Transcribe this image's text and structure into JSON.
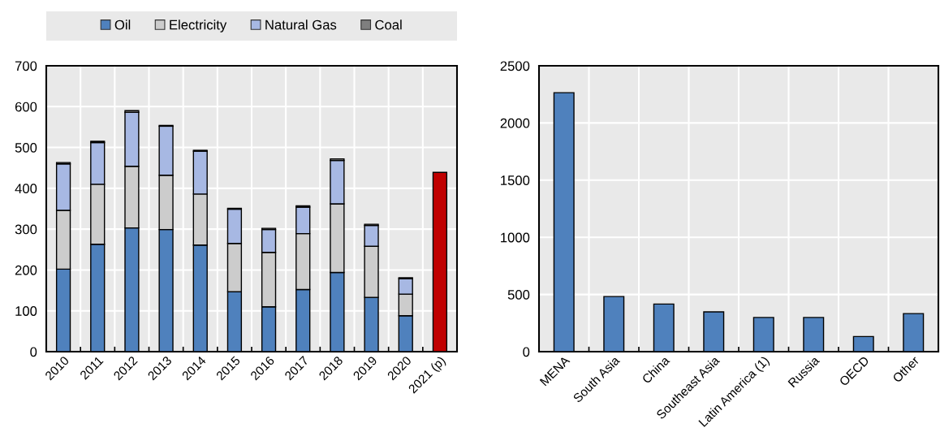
{
  "chart_data": [
    {
      "type": "bar",
      "stacked": true,
      "categories": [
        "2010",
        "2011",
        "2012",
        "2013",
        "2014",
        "2015",
        "2016",
        "2017",
        "2018",
        "2019",
        "2020",
        "2021 (p)"
      ],
      "series": [
        {
          "name": "Oil",
          "color": "#4f81bd",
          "values": [
            202,
            263,
            303,
            299,
            261,
            147,
            110,
            152,
            194,
            133,
            88,
            null
          ]
        },
        {
          "name": "Electricity",
          "color": "#cccccc",
          "values": [
            144,
            147,
            151,
            133,
            125,
            118,
            133,
            137,
            168,
            125,
            53,
            null
          ]
        },
        {
          "name": "Natural Gas",
          "color": "#a7b8e3",
          "values": [
            114,
            102,
            132,
            120,
            105,
            84,
            56,
            65,
            106,
            51,
            38,
            null
          ]
        },
        {
          "name": "Coal",
          "color": "#7f7f7f",
          "values": [
            3,
            3,
            4,
            2,
            2,
            2,
            3,
            3,
            4,
            3,
            2,
            null
          ]
        },
        {
          "color": "#c00000",
          "values": [
            null,
            null,
            null,
            null,
            null,
            null,
            null,
            null,
            null,
            null,
            null,
            439
          ]
        }
      ],
      "ylim": [
        0,
        700
      ],
      "yticks": [
        0,
        100,
        200,
        300,
        400,
        500,
        600,
        700
      ],
      "grid": true,
      "legend": "top"
    },
    {
      "type": "bar",
      "categories": [
        "MENA",
        "South Asia",
        "China",
        "Southeast Asia",
        "Latin America (1)",
        "Russia",
        "OECD",
        "Other"
      ],
      "values": [
        2265,
        482,
        416,
        348,
        299,
        299,
        132,
        333
      ],
      "color": "#4f81bd",
      "ylim": [
        0,
        2500
      ],
      "yticks": [
        0,
        500,
        1000,
        1500,
        2000,
        2500
      ],
      "grid": true
    }
  ]
}
